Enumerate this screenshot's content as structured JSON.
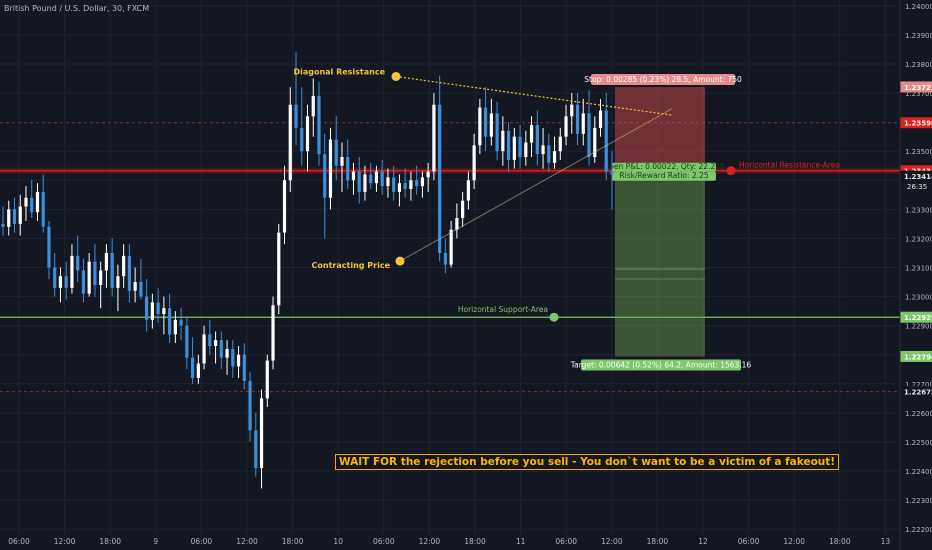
{
  "header": {
    "title": "British Pound / U.S. Dollar, 30, FXCM"
  },
  "caption": "WAIT FOR the rejection before you sell - You don`t want to be a victim of a fakeout!",
  "colors": {
    "background": "#131722",
    "grid": "#1f2330",
    "up": "#ffffff",
    "down": "#3d8fd9",
    "resistance": "#e01e1e",
    "support": "#7ec76a",
    "annotation": "#f7c23c",
    "stop_box": "#e58a8a",
    "target_box": "#7ec76a"
  },
  "annotations": {
    "diagonal_resistance": "Diagonal Resistance",
    "contracting_price": "Contracting Price",
    "horizontal_resistance": "Horizontal Resistance-Area",
    "horizontal_support": "Horizontal Support-Area"
  },
  "position": {
    "stop_label": "Stop: 0.00285 (0.23%) 28.5, Amount: 750",
    "entry_label": "Open P&L: 0.00022, Qty: 22.228",
    "ratio_label": "Risk/Reward Ratio: 2.25",
    "target_label": "Target: 0.00642 (0.52%) 64.2, Amount: 1563.16"
  },
  "chart_data": {
    "type": "candlestick",
    "symbol": "British Pound / U.S. Dollar, 30, FXCM",
    "x_ticks": [
      "06:00",
      "12:00",
      "18:00",
      "9",
      "06:00",
      "12:00",
      "18:00",
      "10",
      "06:00",
      "12:00",
      "18:00",
      "11",
      "06:00",
      "12:00",
      "18:00",
      "12",
      "06:00",
      "12:00",
      "18:00",
      "13"
    ],
    "y_ticks": [
      "1.24000",
      "1.23900",
      "1.23800",
      "1.23700",
      "1.23500",
      "1.23400",
      "1.23300",
      "1.23200",
      "1.23100",
      "1.23000",
      "1.22900",
      "1.22800",
      "1.22700",
      "1.22600",
      "1.22500",
      "1.22400",
      "1.22300",
      "1.22200"
    ],
    "ylim": [
      1.2218,
      1.2402
    ],
    "price_labels": [
      {
        "value": 1.23721,
        "text": "1.23721",
        "color": "#e58a8a"
      },
      {
        "value": 1.23598,
        "text": "1.23598",
        "color": "#e01e1e"
      },
      {
        "value": 1.23436,
        "text": "1.23436",
        "color": "#e6e6e6"
      },
      {
        "value": 1.23433,
        "text": "1.23433",
        "color": "#e01e1e"
      },
      {
        "value": 1.23414,
        "text": "1.23414",
        "color": "#e6e6e6"
      },
      {
        "value": 1.22929,
        "text": "1.22929",
        "color": "#7ec76a"
      },
      {
        "value": 1.22794,
        "text": "1.22794",
        "color": "#7ec76a"
      },
      {
        "value": 1.22673,
        "text": "1.22673",
        "color": "#e6e6e6"
      }
    ],
    "countdown": "26:35",
    "levels": {
      "resistance": 1.23433,
      "support": 1.22929,
      "dashed_upper": 1.23598,
      "dashed_lower": 1.22673
    },
    "trade": {
      "entry": 1.23436,
      "stop": 1.23721,
      "target": 1.22794,
      "inner_line": 1.23095
    },
    "diagonal_resistance": [
      [
        1.23757
      ],
      [
        1.23624
      ]
    ],
    "contracting_line": [
      [
        1.23122
      ],
      [
        1.23646
      ]
    ],
    "candles": [
      [
        1.2325,
        1.2331,
        1.2321,
        1.2324
      ],
      [
        1.2324,
        1.2333,
        1.2321,
        1.233
      ],
      [
        1.233,
        1.2334,
        1.2322,
        1.2325
      ],
      [
        1.2325,
        1.2335,
        1.2321,
        1.2331
      ],
      [
        1.2331,
        1.2338,
        1.2326,
        1.2334
      ],
      [
        1.2334,
        1.234,
        1.2327,
        1.2329
      ],
      [
        1.2329,
        1.2339,
        1.2326,
        1.2336
      ],
      [
        1.2336,
        1.2342,
        1.2322,
        1.2324
      ],
      [
        1.2324,
        1.2326,
        1.2306,
        1.231
      ],
      [
        1.231,
        1.2315,
        1.23,
        1.2303
      ],
      [
        1.2303,
        1.231,
        1.2298,
        1.2307
      ],
      [
        1.2307,
        1.2312,
        1.2299,
        1.2303
      ],
      [
        1.2303,
        1.2318,
        1.2301,
        1.2314
      ],
      [
        1.2314,
        1.2321,
        1.2305,
        1.2309
      ],
      [
        1.2309,
        1.2313,
        1.2298,
        1.2301
      ],
      [
        1.2301,
        1.2315,
        1.23,
        1.2312
      ],
      [
        1.2312,
        1.2318,
        1.23,
        1.2304
      ],
      [
        1.2304,
        1.2312,
        1.2296,
        1.2309
      ],
      [
        1.2309,
        1.2318,
        1.2303,
        1.2315
      ],
      [
        1.2315,
        1.232,
        1.23,
        1.2303
      ],
      [
        1.2303,
        1.2311,
        1.2295,
        1.2307
      ],
      [
        1.2307,
        1.2318,
        1.2303,
        1.2314
      ],
      [
        1.2314,
        1.2318,
        1.2298,
        1.2302
      ],
      [
        1.2302,
        1.231,
        1.2298,
        1.2305
      ],
      [
        1.2305,
        1.2313,
        1.2299,
        1.23
      ],
      [
        1.23,
        1.2306,
        1.2288,
        1.2292
      ],
      [
        1.2292,
        1.2301,
        1.2289,
        1.2298
      ],
      [
        1.2298,
        1.2303,
        1.2291,
        1.2294
      ],
      [
        1.2294,
        1.23,
        1.2287,
        1.2296
      ],
      [
        1.2296,
        1.2301,
        1.2284,
        1.2287
      ],
      [
        1.2287,
        1.2295,
        1.2284,
        1.2292
      ],
      [
        1.2292,
        1.2296,
        1.2285,
        1.229
      ],
      [
        1.229,
        1.2293,
        1.2275,
        1.2279
      ],
      [
        1.2279,
        1.2286,
        1.227,
        1.2272
      ],
      [
        1.2272,
        1.228,
        1.227,
        1.2277
      ],
      [
        1.2277,
        1.229,
        1.2275,
        1.2287
      ],
      [
        1.2287,
        1.2292,
        1.228,
        1.2283
      ],
      [
        1.2283,
        1.2288,
        1.2277,
        1.2285
      ],
      [
        1.2285,
        1.2288,
        1.2275,
        1.2279
      ],
      [
        1.2279,
        1.2285,
        1.2273,
        1.2282
      ],
      [
        1.2282,
        1.2285,
        1.2272,
        1.2276
      ],
      [
        1.2276,
        1.2283,
        1.2272,
        1.228
      ],
      [
        1.228,
        1.2284,
        1.2268,
        1.2271
      ],
      [
        1.2271,
        1.2274,
        1.225,
        1.2254
      ],
      [
        1.2254,
        1.226,
        1.2238,
        1.2241
      ],
      [
        1.2241,
        1.2268,
        1.2234,
        1.2265
      ],
      [
        1.2265,
        1.228,
        1.2262,
        1.2278
      ],
      [
        1.2278,
        1.23,
        1.2275,
        1.2297
      ],
      [
        1.2297,
        1.2325,
        1.2294,
        1.2322
      ],
      [
        1.2322,
        1.2345,
        1.2318,
        1.234
      ],
      [
        1.234,
        1.2372,
        1.2336,
        1.2366
      ],
      [
        1.2366,
        1.2384,
        1.2352,
        1.2358
      ],
      [
        1.2358,
        1.2372,
        1.2345,
        1.235
      ],
      [
        1.235,
        1.2366,
        1.2343,
        1.2362
      ],
      [
        1.2362,
        1.2375,
        1.2355,
        1.2369
      ],
      [
        1.2369,
        1.2374,
        1.2345,
        1.2349
      ],
      [
        1.2349,
        1.2356,
        1.232,
        1.2334
      ],
      [
        1.2334,
        1.2358,
        1.233,
        1.2354
      ],
      [
        1.2354,
        1.2362,
        1.234,
        1.2345
      ],
      [
        1.2345,
        1.2353,
        1.2336,
        1.2348
      ],
      [
        1.2348,
        1.2354,
        1.2337,
        1.234
      ],
      [
        1.234,
        1.2346,
        1.2335,
        1.2343
      ],
      [
        1.2343,
        1.2348,
        1.2332,
        1.2336
      ],
      [
        1.2336,
        1.2345,
        1.2333,
        1.2342
      ],
      [
        1.2342,
        1.2346,
        1.2337,
        1.2339
      ],
      [
        1.2339,
        1.2345,
        1.2336,
        1.2343
      ],
      [
        1.2343,
        1.2347,
        1.2335,
        1.2338
      ],
      [
        1.2338,
        1.2344,
        1.2334,
        1.2341
      ],
      [
        1.2341,
        1.2345,
        1.2333,
        1.2336
      ],
      [
        1.2336,
        1.2342,
        1.2331,
        1.2339
      ],
      [
        1.2339,
        1.2344,
        1.2334,
        1.2337
      ],
      [
        1.2337,
        1.2343,
        1.2333,
        1.234
      ],
      [
        1.234,
        1.2345,
        1.2335,
        1.2338
      ],
      [
        1.2338,
        1.2343,
        1.2334,
        1.2341
      ],
      [
        1.2341,
        1.2346,
        1.2336,
        1.2343
      ],
      [
        1.2343,
        1.237,
        1.234,
        1.2366
      ],
      [
        1.2366,
        1.2376,
        1.2312,
        1.2315
      ],
      [
        1.2315,
        1.232,
        1.2308,
        1.2311
      ],
      [
        1.2311,
        1.2326,
        1.231,
        1.2323
      ],
      [
        1.2323,
        1.2332,
        1.232,
        1.2327
      ],
      [
        1.2327,
        1.2336,
        1.2324,
        1.2333
      ],
      [
        1.2333,
        1.2343,
        1.233,
        1.234
      ],
      [
        1.234,
        1.2356,
        1.2337,
        1.2352
      ],
      [
        1.2352,
        1.2368,
        1.2349,
        1.2365
      ],
      [
        1.2365,
        1.2372,
        1.235,
        1.2355
      ],
      [
        1.2355,
        1.2368,
        1.2352,
        1.2363
      ],
      [
        1.2363,
        1.2367,
        1.2347,
        1.235
      ],
      [
        1.235,
        1.2362,
        1.2345,
        1.2357
      ],
      [
        1.2357,
        1.236,
        1.2343,
        1.2347
      ],
      [
        1.2347,
        1.2358,
        1.2344,
        1.2355
      ],
      [
        1.2355,
        1.2359,
        1.2344,
        1.2348
      ],
      [
        1.2348,
        1.2357,
        1.2345,
        1.2353
      ],
      [
        1.2353,
        1.2362,
        1.2348,
        1.2359
      ],
      [
        1.2359,
        1.2364,
        1.2345,
        1.2349
      ],
      [
        1.2349,
        1.2358,
        1.2344,
        1.2352
      ],
      [
        1.2352,
        1.2356,
        1.2343,
        1.2346
      ],
      [
        1.2346,
        1.2355,
        1.2344,
        1.235
      ],
      [
        1.235,
        1.2358,
        1.2347,
        1.2355
      ],
      [
        1.2355,
        1.2366,
        1.2352,
        1.2362
      ],
      [
        1.2362,
        1.237,
        1.2356,
        1.2366
      ],
      [
        1.2366,
        1.237,
        1.2352,
        1.2356
      ],
      [
        1.2356,
        1.2368,
        1.2352,
        1.2363
      ],
      [
        1.2363,
        1.2371,
        1.2345,
        1.2348
      ],
      [
        1.2348,
        1.2362,
        1.2346,
        1.2358
      ],
      [
        1.2358,
        1.2368,
        1.2355,
        1.2364
      ],
      [
        1.2364,
        1.237,
        1.234,
        1.2343
      ],
      [
        1.2343,
        1.235,
        1.233,
        1.2342
      ]
    ]
  }
}
